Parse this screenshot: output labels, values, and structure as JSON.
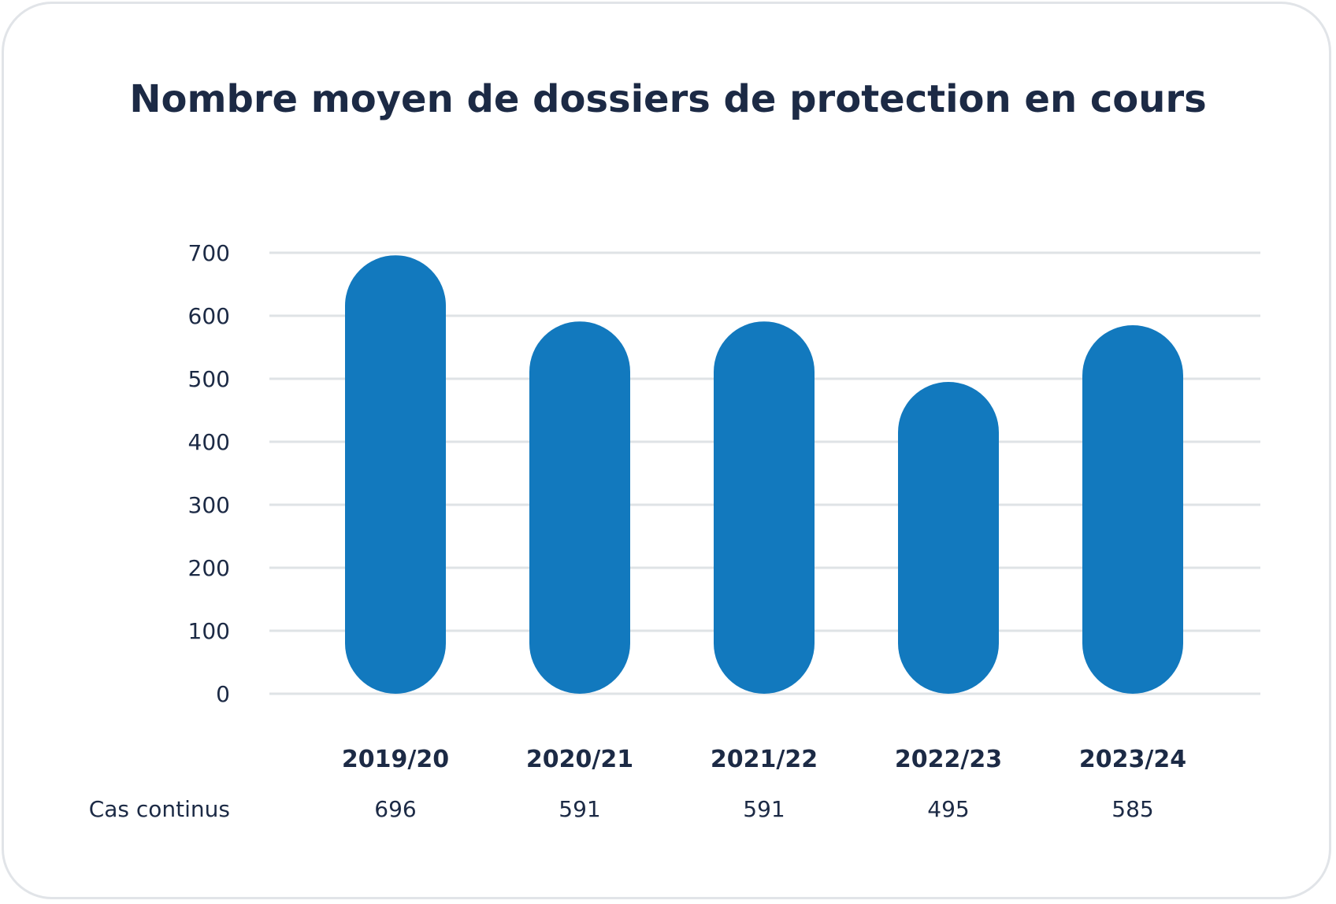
{
  "chart_data": {
    "type": "bar",
    "title": "Nombre moyen de dossiers de protection en cours",
    "categories": [
      "2019/20",
      "2020/21",
      "2021/22",
      "2022/23",
      "2023/24"
    ],
    "series": [
      {
        "name": "Cas continus",
        "values": [
          696,
          591,
          591,
          495,
          585
        ]
      }
    ],
    "value_labels": [
      "696",
      "591",
      "591",
      "495",
      "585"
    ],
    "yticks": [
      "0",
      "100",
      "200",
      "300",
      "400",
      "500",
      "600",
      "700"
    ],
    "ylim": [
      0,
      700
    ],
    "grid": true,
    "bar_color": "#1279be"
  }
}
